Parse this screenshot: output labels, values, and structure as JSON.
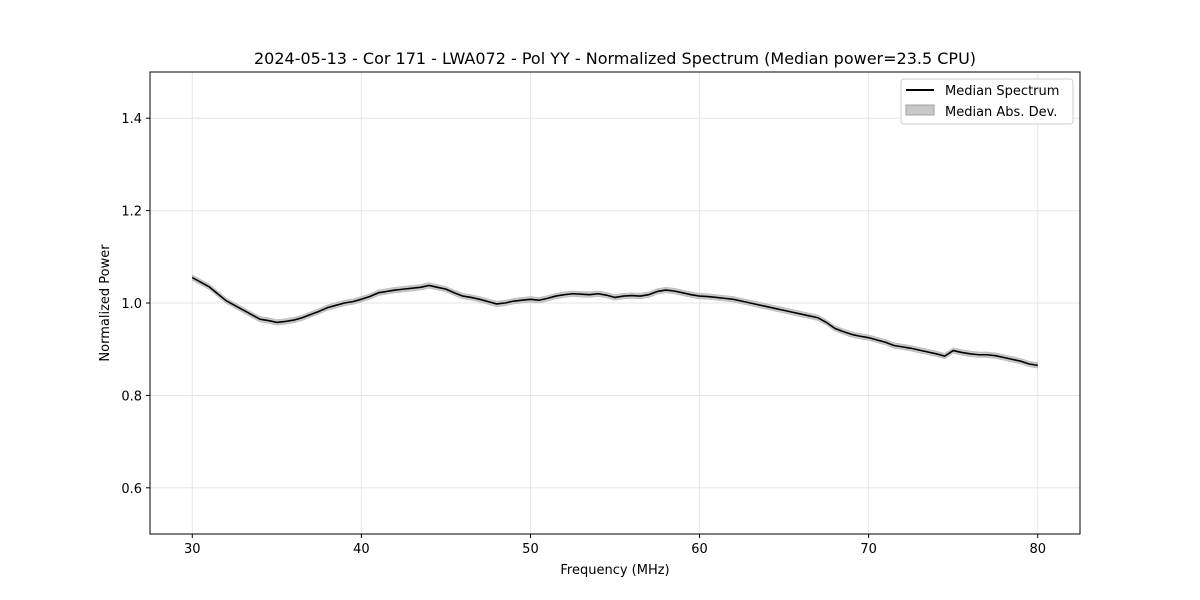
{
  "chart_data": {
    "type": "line",
    "title": "2024-05-13 - Cor 171 - LWA072 - Pol YY - Normalized Spectrum (Median power=23.5 CPU)",
    "xlabel": "Frequency (MHz)",
    "ylabel": "Normalized Power",
    "xlim": [
      27.5,
      82.5
    ],
    "ylim": [
      0.5,
      1.5
    ],
    "xticks": [
      30,
      40,
      50,
      60,
      70,
      80
    ],
    "yticks": [
      0.6,
      0.8,
      1.0,
      1.2,
      1.4
    ],
    "xtick_labels": [
      "30",
      "40",
      "50",
      "60",
      "70",
      "80"
    ],
    "ytick_labels": [
      "0.6",
      "0.8",
      "1.0",
      "1.2",
      "1.4"
    ],
    "grid": true,
    "legend_position": "top-right",
    "legend": [
      "Median Spectrum",
      "Median Abs. Dev."
    ],
    "series": [
      {
        "name": "Median Spectrum",
        "color": "#000000",
        "x": [
          30,
          30.5,
          31,
          31.5,
          32,
          32.5,
          33,
          33.5,
          34,
          34.5,
          35,
          35.5,
          36,
          36.5,
          37,
          37.5,
          38,
          38.5,
          39,
          39.5,
          40,
          40.5,
          41,
          41.5,
          42,
          42.5,
          43,
          43.5,
          44,
          44.5,
          45,
          45.5,
          46,
          46.5,
          47,
          47.5,
          48,
          48.5,
          49,
          49.5,
          50,
          50.5,
          51,
          51.5,
          52,
          52.5,
          53,
          53.5,
          54,
          54.5,
          55,
          55.5,
          56,
          56.5,
          57,
          57.5,
          58,
          58.5,
          59,
          59.5,
          60,
          60.5,
          61,
          61.5,
          62,
          62.5,
          63,
          63.5,
          64,
          64.5,
          65,
          65.5,
          66,
          66.5,
          67,
          67.5,
          68,
          68.5,
          69,
          69.5,
          70,
          70.5,
          71,
          71.5,
          72,
          72.5,
          73,
          73.5,
          74,
          74.5,
          75,
          75.5,
          76,
          76.5,
          77,
          77.5,
          78,
          78.5,
          79,
          79.5,
          80
        ],
        "values": [
          1.055,
          1.045,
          1.035,
          1.02,
          1.005,
          0.995,
          0.985,
          0.975,
          0.965,
          0.962,
          0.958,
          0.96,
          0.963,
          0.968,
          0.975,
          0.982,
          0.99,
          0.995,
          1.0,
          1.003,
          1.008,
          1.014,
          1.022,
          1.025,
          1.028,
          1.03,
          1.032,
          1.034,
          1.038,
          1.034,
          1.03,
          1.022,
          1.015,
          1.012,
          1.008,
          1.003,
          0.998,
          1.0,
          1.004,
          1.006,
          1.008,
          1.006,
          1.01,
          1.015,
          1.018,
          1.02,
          1.019,
          1.018,
          1.02,
          1.017,
          1.012,
          1.015,
          1.016,
          1.015,
          1.018,
          1.025,
          1.028,
          1.026,
          1.022,
          1.018,
          1.015,
          1.014,
          1.012,
          1.01,
          1.008,
          1.004,
          1.0,
          0.996,
          0.992,
          0.988,
          0.984,
          0.98,
          0.976,
          0.972,
          0.968,
          0.958,
          0.945,
          0.938,
          0.932,
          0.928,
          0.925,
          0.92,
          0.915,
          0.908,
          0.905,
          0.902,
          0.898,
          0.894,
          0.89,
          0.885,
          0.897,
          0.893,
          0.89,
          0.888,
          0.888,
          0.886,
          0.882,
          0.878,
          0.874,
          0.868,
          0.865
        ]
      }
    ],
    "mad_band": {
      "name": "Median Abs. Dev.",
      "color": "#c8c8c8",
      "half_width": 0.006
    }
  }
}
